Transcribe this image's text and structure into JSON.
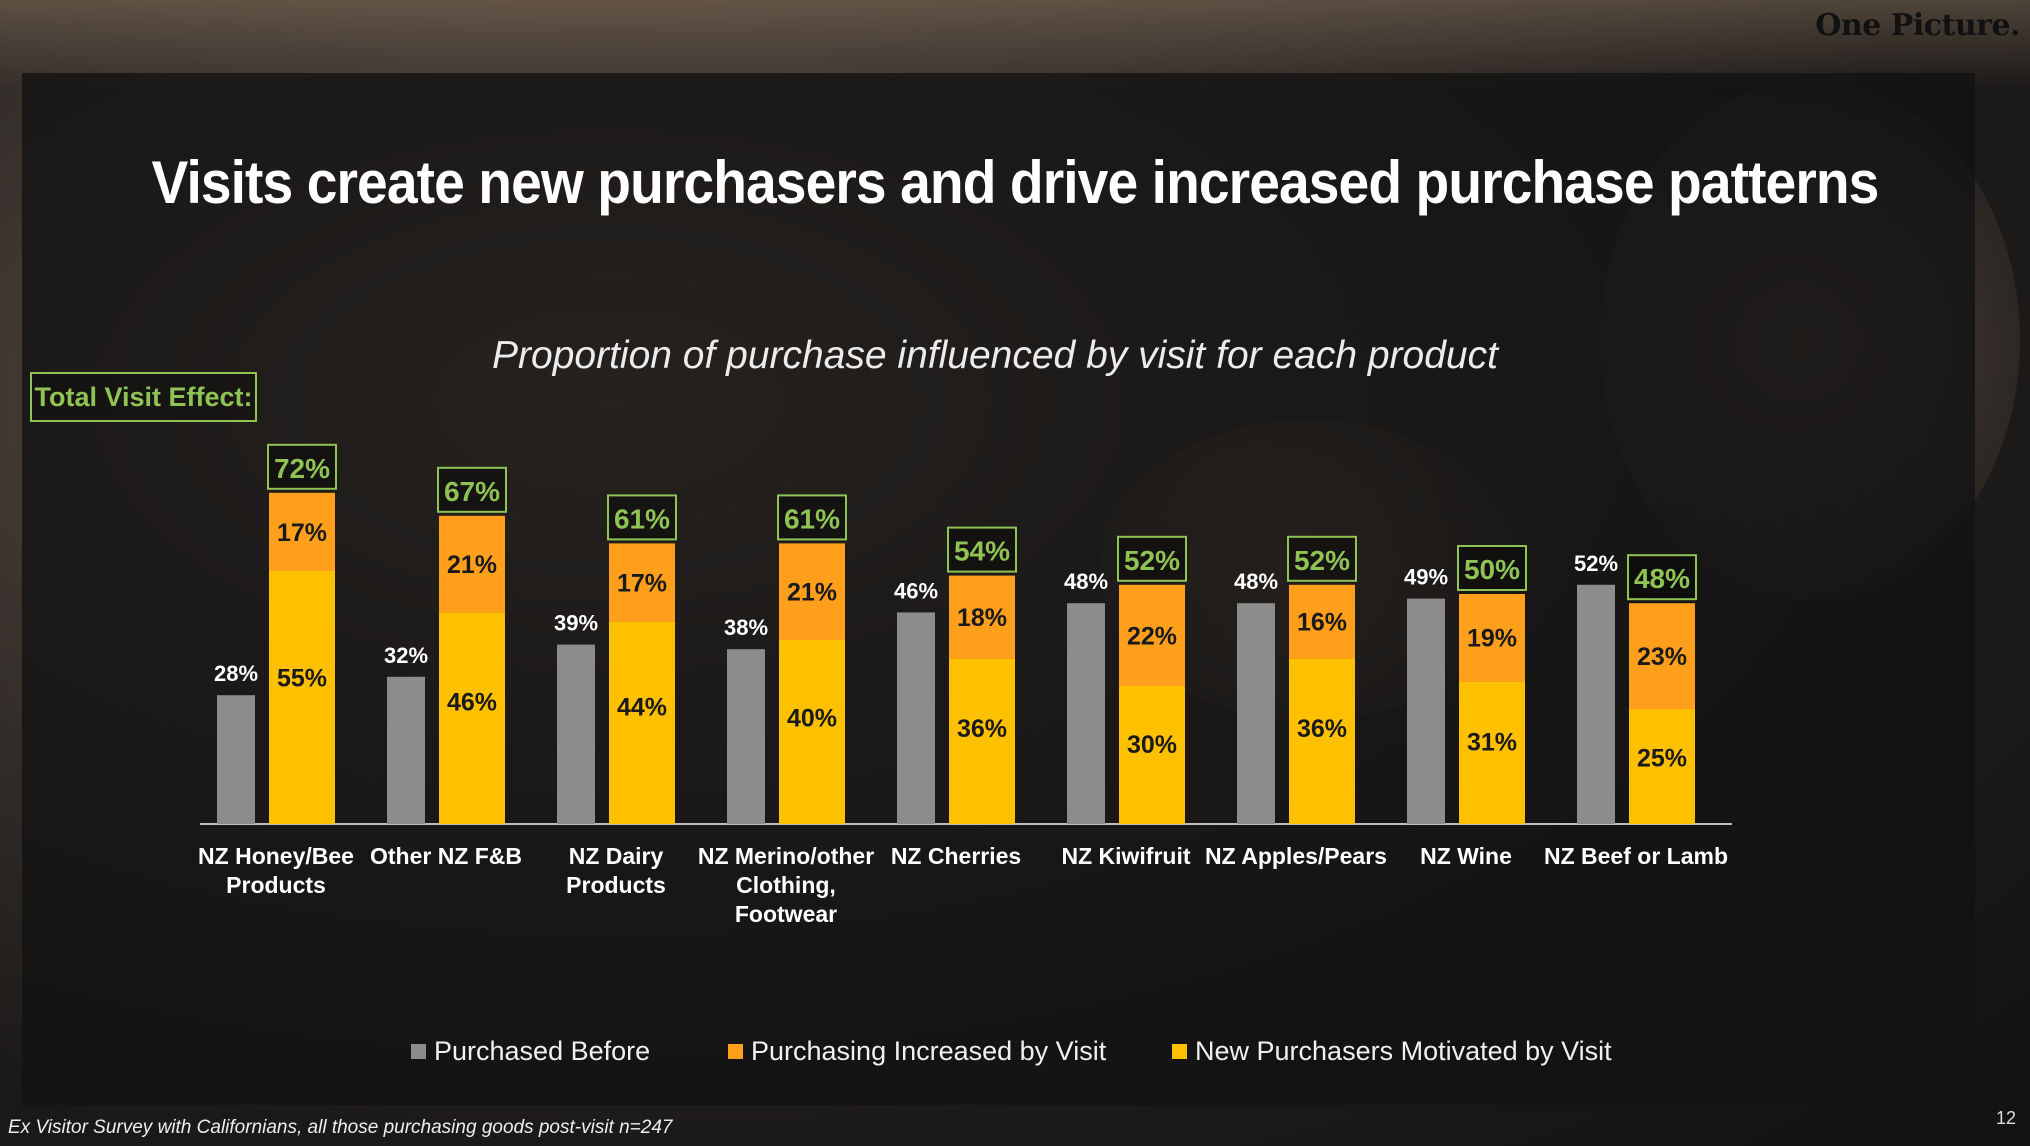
{
  "brand": "One Picture.",
  "slide_title": "Visits create new purchasers and drive increased purchase patterns",
  "total_visit_effect_label": "Total Visit Effect:",
  "footnote": "Ex Visitor Survey with Californians, all those purchasing goods post-visit  n=247",
  "page_number": "12",
  "colors": {
    "purchased_before": "#8c8c8c",
    "increased": "#ff9f1c",
    "new": "#ffc000",
    "total_box": "#8fc353"
  },
  "chart_data": {
    "type": "bar",
    "title": "Proportion of purchase influenced by visit for each product",
    "categories": [
      [
        "NZ Honey/Bee",
        "Products"
      ],
      [
        "Other NZ F&B"
      ],
      [
        "NZ Dairy",
        "Products"
      ],
      [
        "NZ Merino/other",
        "Clothing,",
        "Footwear"
      ],
      [
        "NZ Cherries"
      ],
      [
        "NZ Kiwifruit"
      ],
      [
        "NZ Apples/Pears"
      ],
      [
        "NZ Wine"
      ],
      [
        "NZ Beef or Lamb"
      ]
    ],
    "series": [
      {
        "name": "Purchased Before",
        "values": [
          28,
          32,
          39,
          38,
          46,
          48,
          48,
          49,
          52
        ]
      },
      {
        "name": "Purchasing Increased by Visit",
        "values": [
          17,
          21,
          17,
          21,
          18,
          22,
          16,
          19,
          23
        ]
      },
      {
        "name": "New Purchasers Motivated by Visit",
        "values": [
          55,
          46,
          44,
          40,
          36,
          30,
          36,
          31,
          25
        ]
      }
    ],
    "totals": [
      72,
      67,
      61,
      61,
      54,
      52,
      52,
      50,
      48
    ],
    "stack": [
      "Purchasing Increased by Visit",
      "New Purchasers Motivated by Visit"
    ],
    "value_suffix": "%"
  }
}
